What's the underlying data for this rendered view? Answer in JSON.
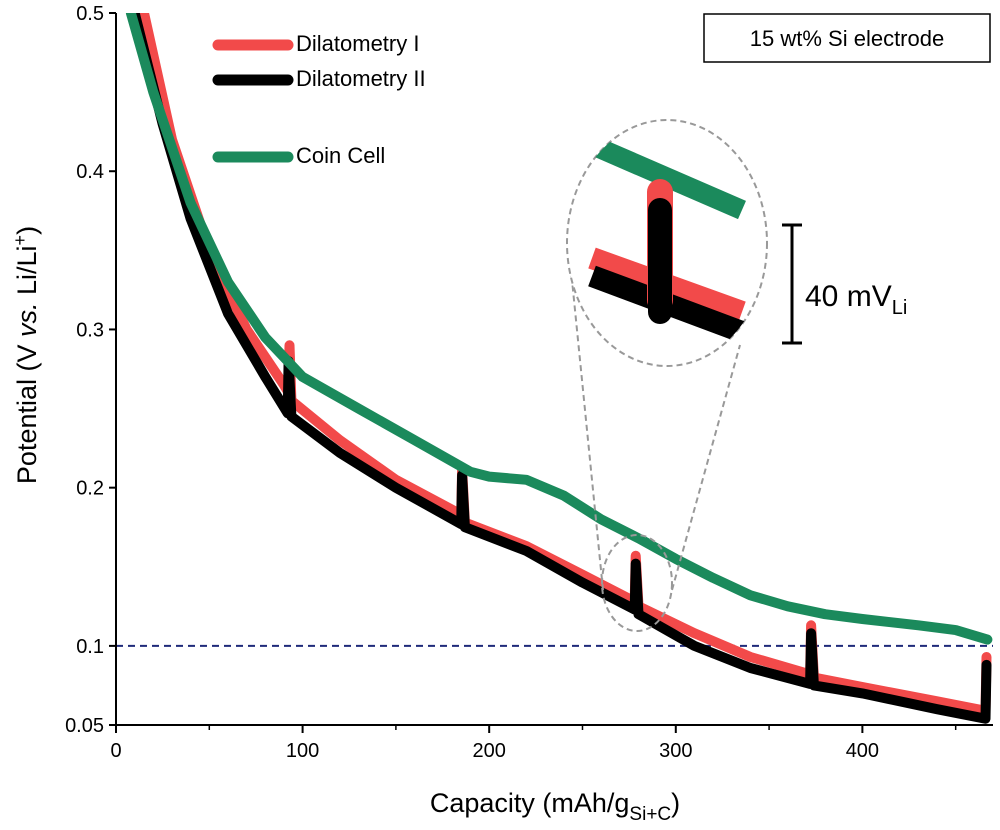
{
  "chart_data": {
    "type": "line",
    "xlabel": {
      "main": "Capacity (mAh/g",
      "sub": "Si+C",
      "end": ")"
    },
    "ylabel": {
      "main": "Potential (V ",
      "italic": "vs.",
      "rest": " Li/Li",
      "sup": "+",
      "end": ")"
    },
    "annotation": "15 wt% Si electrode",
    "inset_label": {
      "main": "40 mV",
      "sub": "Li"
    },
    "xlim": [
      0,
      470
    ],
    "ylim": [
      0.05,
      0.5
    ],
    "xticks": [
      0,
      100,
      200,
      300,
      400
    ],
    "xminorticks": [
      50,
      150,
      250,
      350,
      450
    ],
    "yticks": [
      0.05,
      0.1,
      0.2,
      0.3,
      0.4,
      0.5
    ],
    "hline": {
      "value": 0.1,
      "color": "#1f2a7a"
    },
    "series": [
      {
        "name": "Dilatometry I",
        "color": "#f24a4a",
        "x": [
          15,
          30,
          50,
          70,
          90,
          92.5,
          93,
          94,
          120,
          150,
          185,
          185.5,
          187,
          220,
          250,
          278,
          278.5,
          280,
          310,
          340,
          372,
          372.5,
          374,
          400,
          440,
          466,
          466.5
        ],
        "values": [
          0.5,
          0.42,
          0.35,
          0.3,
          0.265,
          0.26,
          0.29,
          0.255,
          0.23,
          0.205,
          0.183,
          0.212,
          0.178,
          0.163,
          0.145,
          0.128,
          0.157,
          0.125,
          0.108,
          0.093,
          0.082,
          0.113,
          0.08,
          0.074,
          0.065,
          0.059,
          0.093
        ]
      },
      {
        "name": "Dilatometry II",
        "color": "#000000",
        "x": [
          10,
          25,
          40,
          60,
          80,
          92,
          92.5,
          94,
          120,
          150,
          185,
          185.5,
          187,
          220,
          250,
          278,
          278.5,
          280,
          310,
          340,
          372,
          372.5,
          374,
          400,
          440,
          466,
          466.5
        ],
        "values": [
          0.5,
          0.43,
          0.37,
          0.31,
          0.27,
          0.247,
          0.28,
          0.245,
          0.222,
          0.2,
          0.177,
          0.208,
          0.175,
          0.16,
          0.14,
          0.123,
          0.152,
          0.12,
          0.1,
          0.086,
          0.076,
          0.108,
          0.075,
          0.07,
          0.06,
          0.054,
          0.088
        ]
      },
      {
        "name": "Coin Cell",
        "color": "#1b8a5c",
        "x": [
          8,
          20,
          40,
          60,
          80,
          100,
          130,
          160,
          190,
          200,
          220,
          240,
          260,
          280,
          300,
          320,
          340,
          360,
          380,
          400,
          430,
          450,
          467
        ],
        "values": [
          0.5,
          0.45,
          0.38,
          0.33,
          0.295,
          0.27,
          0.25,
          0.23,
          0.21,
          0.207,
          0.205,
          0.195,
          0.18,
          0.168,
          0.155,
          0.143,
          0.132,
          0.125,
          0.12,
          0.117,
          0.113,
          0.11,
          0.104
        ]
      }
    ]
  }
}
